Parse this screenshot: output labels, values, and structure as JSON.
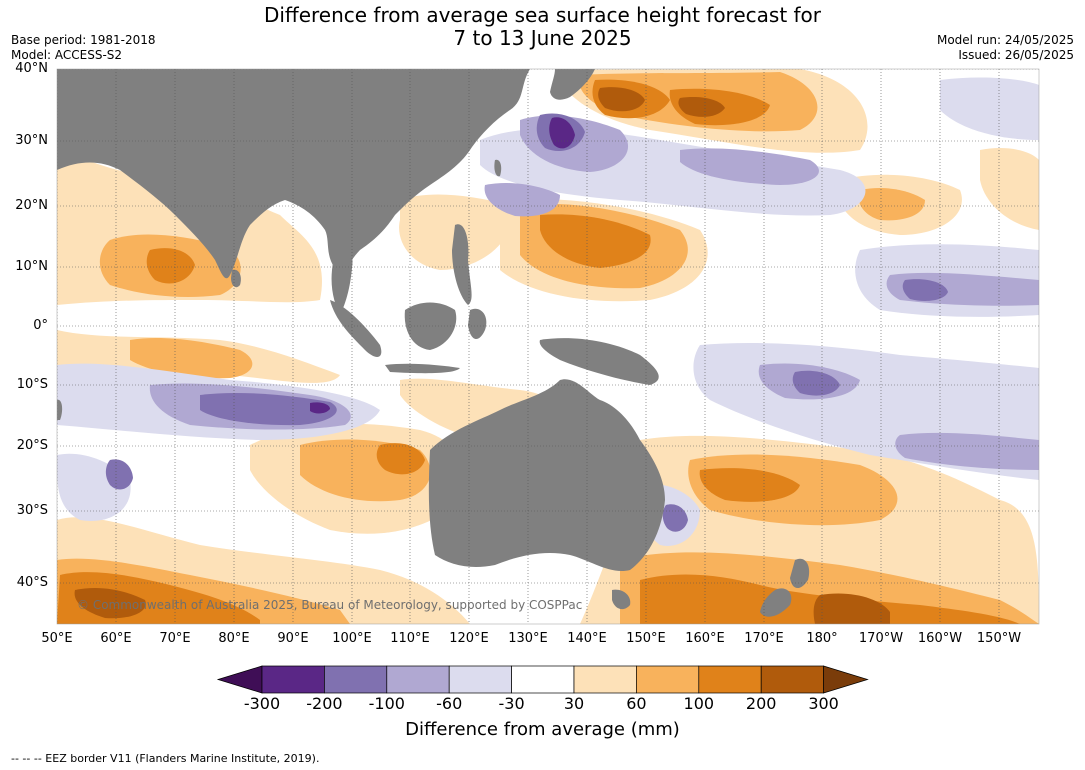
{
  "header": {
    "title_line1": "Difference from average sea surface height forecast for",
    "title_line2": "7 to 13 June 2025",
    "base_period": "Base period: 1981-2018",
    "model": "Model: ACCESS-S2",
    "model_run": "Model run: 24/05/2025",
    "issued": "Issued: 26/05/2025"
  },
  "map": {
    "lat_labels": [
      "40°N",
      "30°N",
      "20°N",
      "10°N",
      "0°",
      "10°S",
      "20°S",
      "30°S",
      "40°S"
    ],
    "lon_labels": [
      "50°E",
      "60°E",
      "70°E",
      "80°E",
      "90°E",
      "100°E",
      "110°E",
      "120°E",
      "130°E",
      "140°E",
      "150°E",
      "160°E",
      "170°E",
      "180°",
      "170°W",
      "160°W",
      "150°W"
    ],
    "copyright": "© Commonwealth of Australia 2025, Bureau of Meteorology, supported by COSPPac",
    "land_color": "#808080"
  },
  "colorbar": {
    "tick_labels": [
      "-300",
      "-200",
      "-100",
      "-60",
      "-30",
      "30",
      "60",
      "100",
      "200",
      "300"
    ],
    "colors": [
      "#3f0e56",
      "#5a2786",
      "#8071b0",
      "#b0a8d2",
      "#dcdcee",
      "#ffffff",
      "#fde1b8",
      "#f8b25c",
      "#e0821a",
      "#b05b0c",
      "#7a3c0a"
    ],
    "label": "Difference from average (mm)"
  },
  "footnote": "--  --  -- EEZ border V11 (Flanders Marine Institute, 2019)."
}
